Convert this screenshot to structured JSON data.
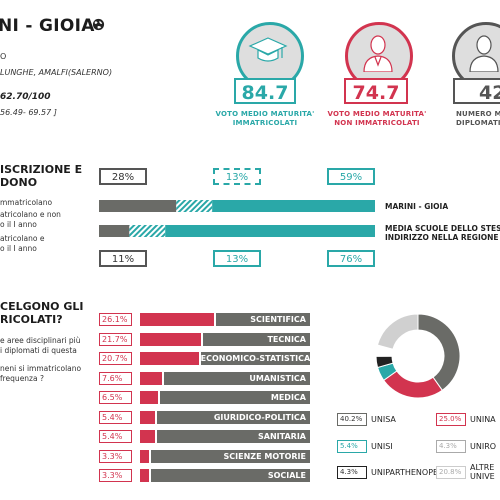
{
  "header": {
    "title": "NI - GIOIA",
    "line1": "O",
    "location": "LUNGHE, AMALFI(SALERNO)",
    "score": "62.70/100",
    "range": "56.49- 69.57 ]"
  },
  "kpis": [
    {
      "value": "84.7",
      "label_line1": "VOTO MEDIO MATURITA'",
      "label_line2": "IMMATRICOLATI",
      "color": "#2aa8a8",
      "icon": "graduation-cap-icon"
    },
    {
      "value": "74.7",
      "label_line1": "VOTO MEDIO MATURITA'",
      "label_line2": "NON IMMATRICOLATI",
      "color": "#d2344f",
      "icon": "person-icon"
    },
    {
      "value": "42",
      "label_line1": "NUMERO M",
      "label_line2": "DIPLOMATI PE",
      "color": "#555555",
      "icon": "person-icon"
    }
  ],
  "enrollment": {
    "section_line1": "ISCRIZIONE E",
    "section_line2": "DONO",
    "note1_line1": "mmatricolano",
    "note2_line1": "atricolano e non",
    "note2_line2": "o il I anno",
    "note3_line1": "atricolano e",
    "note3_line2": "o il I anno",
    "school": {
      "p1": "28%",
      "p2": "13%",
      "p3": "59%",
      "label": "MARINI - GIOIA"
    },
    "average": {
      "p1": "11%",
      "p2": "13%",
      "p3": "76%",
      "label_line1": "MEDIA SCUOLE DELLO STES",
      "label_line2": "INDIRIZZO NELLA REGIONE"
    },
    "colors": {
      "gray": "#6a6b67",
      "teal": "#2aa8a8"
    }
  },
  "fields": {
    "section_line1": "CELGONO GLI",
    "section_line2": "RICOLATI?",
    "note_line1": "e aree disciplinari più",
    "note_line2": "i diplomati di questa",
    "note_line3": "neni si immatricolano",
    "note_line4": "frequenza ?",
    "items": [
      {
        "pct": "26.1%",
        "value": 26.1,
        "name": "SCIENTIFICA"
      },
      {
        "pct": "21.7%",
        "value": 21.7,
        "name": "TECNICA"
      },
      {
        "pct": "20.7%",
        "value": 20.7,
        "name": "ECONOMICO-STATISTICA"
      },
      {
        "pct": "7.6%",
        "value": 7.6,
        "name": "UMANISTICA"
      },
      {
        "pct": "6.5%",
        "value": 6.5,
        "name": "MEDICA"
      },
      {
        "pct": "5.4%",
        "value": 5.4,
        "name": "GIURIDICO-POLITICA"
      },
      {
        "pct": "5.4%",
        "value": 5.4,
        "name": "SANITARIA"
      },
      {
        "pct": "3.3%",
        "value": 3.3,
        "name": "SCIENZE MOTORIE"
      },
      {
        "pct": "3.3%",
        "value": 3.3,
        "name": "SOCIALE"
      }
    ]
  },
  "universities": {
    "slices": [
      {
        "value": 40.2,
        "color": "#6a6b67"
      },
      {
        "value": 25.0,
        "color": "#d2344f"
      },
      {
        "value": 5.4,
        "color": "#2aa8a8"
      },
      {
        "value": 4.3,
        "color": "#222222"
      },
      {
        "value": 4.3,
        "color": "#ffffff"
      },
      {
        "value": 20.8,
        "color": "#d0d0d0"
      }
    ],
    "legend": [
      {
        "pct": "40.2%",
        "name": "UNISA",
        "color": "#6a6b67"
      },
      {
        "pct": "25.0%",
        "name": "UNINA",
        "color": "#d2344f"
      },
      {
        "pct": "5.4%",
        "name": "UNISI",
        "color": "#2aa8a8"
      },
      {
        "pct": "4.3%",
        "name": "UNIRO",
        "color": "#aaaaaa"
      },
      {
        "pct": "4.3%",
        "name": "UNIPARTHENOPE",
        "color": "#222222"
      },
      {
        "pct": "20.8%",
        "name": "ALTRE",
        "name2": "UNIVE",
        "color": "#cccccc"
      }
    ]
  }
}
